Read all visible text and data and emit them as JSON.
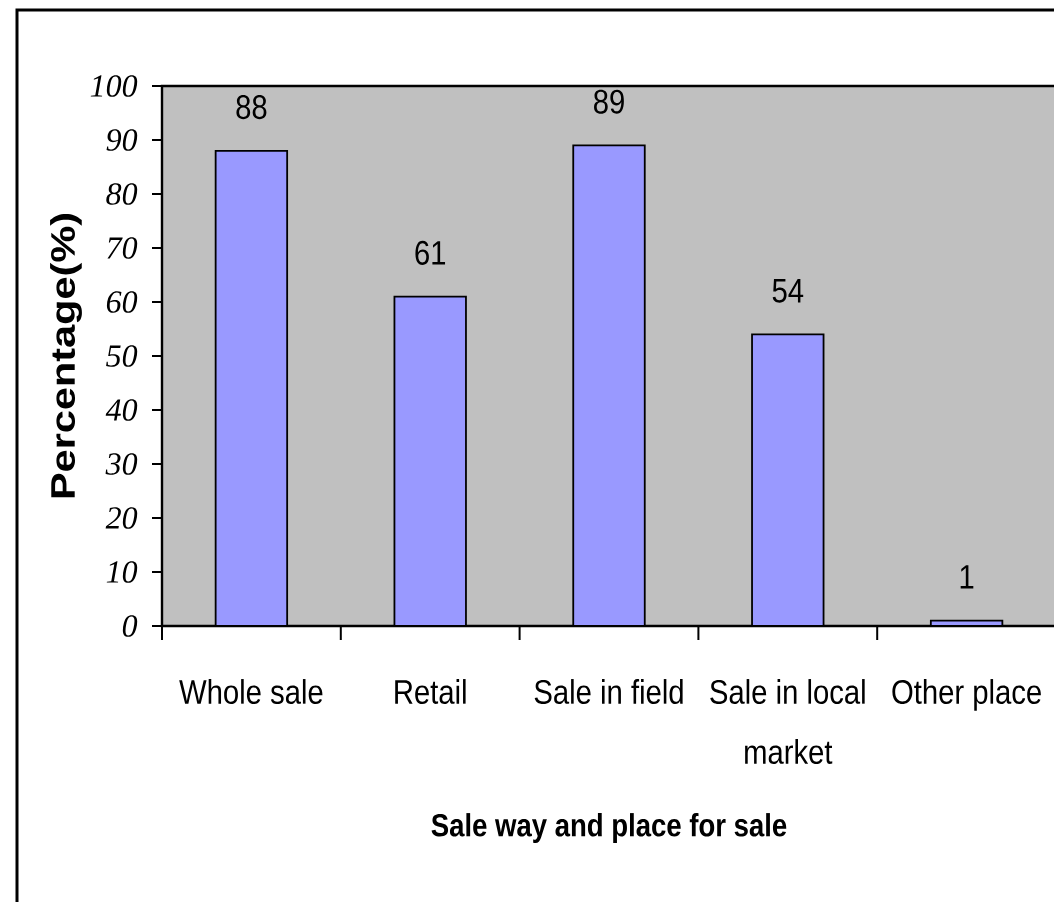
{
  "chart_data": {
    "type": "bar",
    "xlabel": "Sale way and place for sale",
    "ylabel": "Percentage(%)",
    "categories": [
      "Whole sale",
      "Retail",
      "Sale in field",
      "Sale in local market",
      "Other place"
    ],
    "values": [
      88,
      61,
      89,
      54,
      1
    ],
    "color": "#9999ff",
    "ylim": [
      0,
      100
    ],
    "yticks": [
      0,
      10,
      20,
      30,
      40,
      50,
      60,
      70,
      80,
      90,
      100
    ],
    "data_labels": true
  }
}
